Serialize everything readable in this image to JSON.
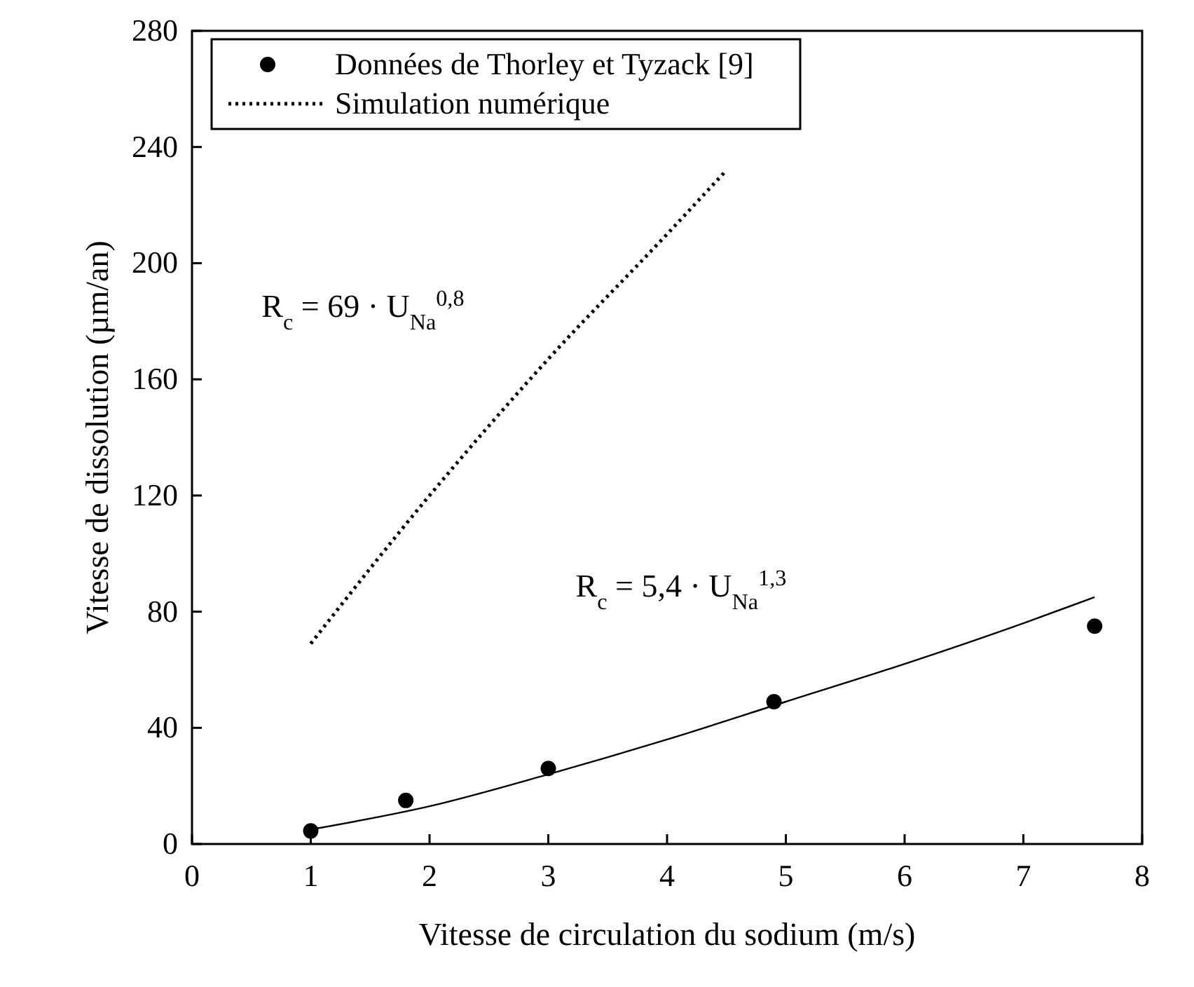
{
  "chart_data": {
    "type": "scatter",
    "xlabel": "Vitesse de circulation du sodium (m/s)",
    "ylabel": "Vitesse de dissolution (µm/an)",
    "xlim": [
      0,
      8
    ],
    "xticks": [
      0,
      1,
      2,
      3,
      4,
      5,
      6,
      7,
      8
    ],
    "ylim": [
      0,
      280
    ],
    "yticks": [
      0,
      40,
      80,
      120,
      160,
      200,
      240,
      280
    ],
    "grid": false,
    "legend": "top left",
    "series": [
      {
        "name": "Données de Thorley et Tyzack [9]",
        "marker": "circle",
        "color": "#000000",
        "x": [
          1,
          1.8,
          3,
          4.9,
          7.6
        ],
        "values": [
          4.5,
          15,
          26,
          49,
          75
        ]
      },
      {
        "name": "Simulation numérique",
        "type": "line",
        "line_style": "dotted",
        "color": "#000000",
        "x": [
          1,
          2,
          3,
          4,
          4.5
        ],
        "values": [
          69,
          120,
          167,
          210,
          232
        ]
      },
      {
        "type": "line",
        "line_style": "solid",
        "color": "#000000",
        "x": [
          1,
          2,
          3,
          4,
          5,
          6,
          7,
          7.6
        ],
        "values": [
          5,
          13,
          24,
          36,
          49,
          62,
          76,
          85
        ]
      }
    ],
    "annotations": [
      "R$_{c}$ = 69 · U$_{Na}$$^{0,8}$",
      "R$_{c}$ = 5,4 · U$_{Na}$$^{1,3}$"
    ]
  }
}
